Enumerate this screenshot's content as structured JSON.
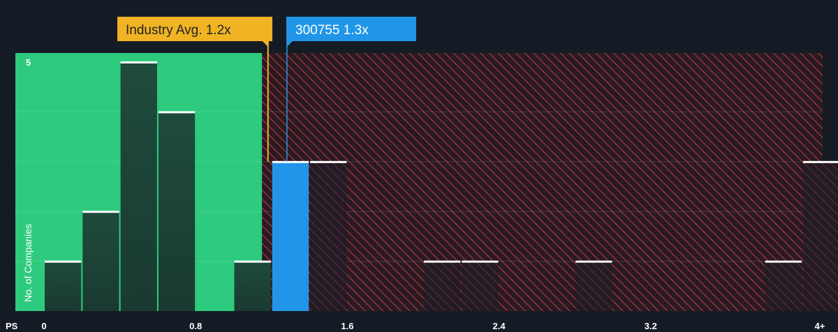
{
  "chart_data": {
    "type": "bar",
    "xlabel": "PS",
    "ylabel": "No. of Companies",
    "x_ticks": [
      "0",
      "0.8",
      "1.6",
      "2.4",
      "3.2",
      "4+"
    ],
    "x_tick_values": [
      0,
      0.8,
      1.6,
      2.4,
      3.2,
      4.0
    ],
    "y_ticks": [
      "5"
    ],
    "y_tick_values": [
      5
    ],
    "ylim": [
      0,
      5.15
    ],
    "bin_width": 0.2,
    "bins": [
      {
        "x0": 0.0,
        "value": 1
      },
      {
        "x0": 0.2,
        "value": 2
      },
      {
        "x0": 0.4,
        "value": 5
      },
      {
        "x0": 0.6,
        "value": 4
      },
      {
        "x0": 1.0,
        "value": 1
      },
      {
        "x0": 1.2,
        "value": 3,
        "highlight": true
      },
      {
        "x0": 1.4,
        "value": 3
      },
      {
        "x0": 2.0,
        "value": 1
      },
      {
        "x0": 2.2,
        "value": 1
      },
      {
        "x0": 2.8,
        "value": 1
      },
      {
        "x0": 3.8,
        "value": 1
      },
      {
        "x0": 4.0,
        "value": 3
      }
    ],
    "fair_zone_max": 1.15,
    "industry_avg": {
      "label": "Industry Avg. 1.2x",
      "value": 1.2
    },
    "company": {
      "label": "300755 1.3x",
      "value": 1.3
    },
    "grid": true,
    "legend": "none"
  },
  "colors": {
    "background": "#151b24",
    "fair_zone": "#2ecb7e",
    "bar_dark": "#1f4a3c",
    "bar_top": "#ffffff",
    "highlight_bar": "#2196e8",
    "hatch_bg": "#2a1a22",
    "hatch_line": "#b83a45",
    "industry_callout": "#f0b323",
    "company_callout": "#2196e8"
  }
}
